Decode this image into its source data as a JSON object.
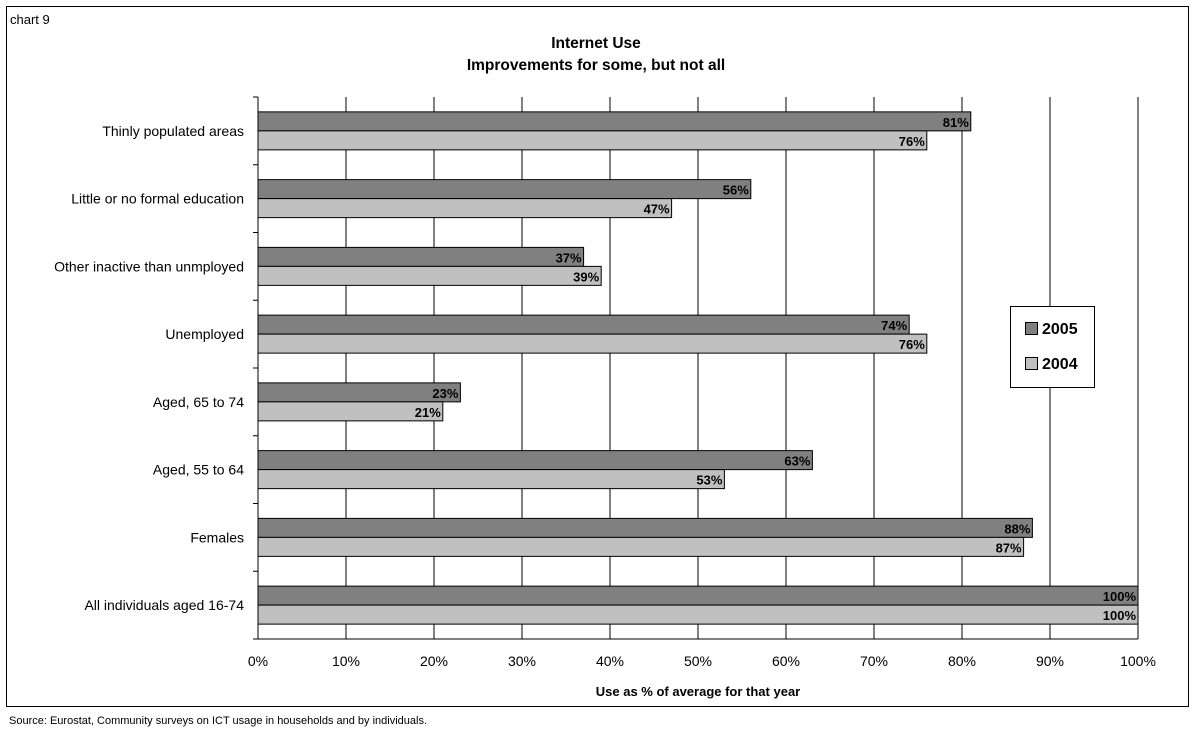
{
  "header": {
    "chart_label": "chart 9",
    "title_line1": "Internet Use",
    "title_line2": "Improvements for some, but not all"
  },
  "footer": {
    "source": "Source: Eurostat, Community surveys on ICT usage in households and by  individuals."
  },
  "colors": {
    "series_2005": "#808080",
    "series_2004": "#c0c0c0",
    "gridline": "#000000"
  },
  "chart_data": {
    "type": "bar",
    "orientation": "horizontal",
    "categories": [
      "Thinly populated areas",
      "Little or no formal education",
      "Other inactive than unmployed",
      "Unemployed",
      "Aged, 65 to 74",
      "Aged, 55 to 64",
      "Females",
      "All individuals aged 16-74"
    ],
    "series": [
      {
        "name": "2005",
        "values": [
          81,
          56,
          37,
          74,
          23,
          63,
          88,
          100
        ],
        "labels": [
          "81%",
          "56%",
          "37%",
          "74%",
          "23%",
          "63%",
          "88%",
          "100%"
        ]
      },
      {
        "name": "2004",
        "values": [
          76,
          47,
          39,
          76,
          21,
          53,
          87,
          100
        ],
        "labels": [
          "76%",
          "47%",
          "39%",
          "76%",
          "21%",
          "53%",
          "87%",
          "100%"
        ]
      }
    ],
    "title": "Internet Use\nImprovements for some, but not all",
    "xlabel": "Use as % of average for that year",
    "ylabel": "",
    "xlim": [
      0,
      100
    ],
    "xticks": [
      "0%",
      "10%",
      "20%",
      "30%",
      "40%",
      "50%",
      "60%",
      "70%",
      "80%",
      "90%",
      "100%"
    ],
    "grid": true,
    "legend_position": "right"
  }
}
